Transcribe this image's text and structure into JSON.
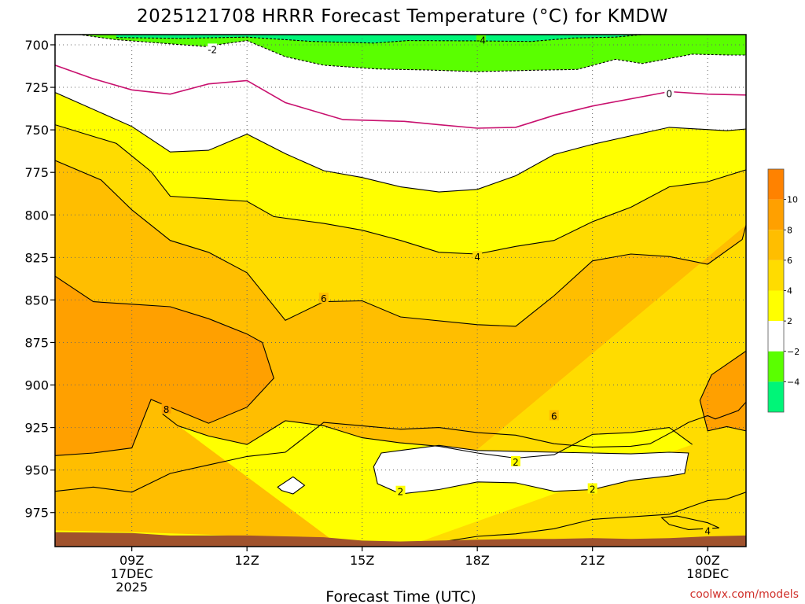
{
  "chart_data": {
    "type": "heatmap",
    "title": "2025121708 HRRR Forecast Temperature (°C) for KMDW",
    "xlabel": "Forecast Time (UTC)",
    "ylabel": "",
    "credit": "coolwx.com/models",
    "y_axis": {
      "quantity": "pressure (hPa)",
      "inverted": true,
      "range": [
        995,
        694
      ],
      "ticks": [
        700,
        725,
        750,
        775,
        800,
        825,
        850,
        875,
        900,
        925,
        950,
        975
      ]
    },
    "x_axis": {
      "range_hours_valid_utc": [
        7.0,
        25.0
      ],
      "ticks": [
        {
          "h": 9,
          "label": "09Z",
          "sublabels": [
            "17DEC",
            "2025"
          ]
        },
        {
          "h": 12,
          "label": "12Z",
          "sublabels": []
        },
        {
          "h": 15,
          "label": "15Z",
          "sublabels": []
        },
        {
          "h": 18,
          "label": "18Z",
          "sublabels": []
        },
        {
          "h": 21,
          "label": "21Z",
          "sublabels": []
        },
        {
          "h": 24,
          "label": "00Z",
          "sublabels": [
            "18DEC"
          ]
        }
      ]
    },
    "grid": "dotted",
    "colorbar": {
      "placement": "right",
      "ticks": [
        10,
        8,
        6,
        4,
        2,
        -2,
        -4
      ],
      "tick_labels": [
        "10",
        "8",
        "6",
        "4",
        "2",
        "−2",
        "−4"
      ],
      "bins": [
        {
          "range": [
            10,
            12
          ],
          "color": "#ff8200"
        },
        {
          "range": [
            8,
            10
          ],
          "color": "#ffa000"
        },
        {
          "range": [
            6,
            8
          ],
          "color": "#ffbe00"
        },
        {
          "range": [
            4,
            6
          ],
          "color": "#ffdc00"
        },
        {
          "range": [
            2,
            4
          ],
          "color": "#ffff00"
        },
        {
          "range": [
            -2,
            2
          ],
          "color": "#ffffff"
        },
        {
          "range": [
            -4,
            -2
          ],
          "color": "#5aff00"
        },
        {
          "range": [
            -6,
            -4
          ],
          "color": "#00f578"
        }
      ]
    },
    "surface_color": "#a0522d",
    "freezing_line_color": "#c8106e",
    "isotherms": [
      {
        "value": -4,
        "label": "-4",
        "color": "#000000",
        "points": [
          [
            8.6,
            695.7
          ],
          [
            10.2,
            696.2
          ],
          [
            12.0,
            695.5
          ],
          [
            13.7,
            698.0
          ],
          [
            15.3,
            699.0
          ],
          [
            16.2,
            697.5
          ],
          [
            18.0,
            697.7
          ],
          [
            19.4,
            698.0
          ],
          [
            20.5,
            696.0
          ],
          [
            21.6,
            695.5
          ],
          [
            22.3,
            694.0
          ]
        ]
      },
      {
        "value": -2,
        "label": "-2",
        "color": "#000000",
        "points": [
          [
            7.0,
            692.0
          ],
          [
            8.6,
            697.0
          ],
          [
            10.9,
            701.0
          ],
          [
            12.0,
            697.5
          ],
          [
            13.0,
            707.0
          ],
          [
            14.0,
            712.0
          ],
          [
            15.4,
            714.2
          ],
          [
            16.7,
            714.8
          ],
          [
            18.0,
            715.8
          ],
          [
            19.4,
            715.0
          ],
          [
            20.6,
            714.5
          ],
          [
            21.6,
            708.5
          ],
          [
            22.3,
            711.0
          ],
          [
            23.6,
            705.5
          ],
          [
            24.6,
            706.0
          ],
          [
            25.0,
            706.0
          ]
        ]
      },
      {
        "value": 0,
        "label": "0",
        "color": "#c8106e",
        "points": [
          [
            7.0,
            712.0
          ],
          [
            8.0,
            720.0
          ],
          [
            9.0,
            726.5
          ],
          [
            10.0,
            729.0
          ],
          [
            11.0,
            723.0
          ],
          [
            12.0,
            721.0
          ],
          [
            13.0,
            734.0
          ],
          [
            14.5,
            744.0
          ],
          [
            16.1,
            745.0
          ],
          [
            17.0,
            747.0
          ],
          [
            18.0,
            749.0
          ],
          [
            19.0,
            748.5
          ],
          [
            20.0,
            741.5
          ],
          [
            21.0,
            736.0
          ],
          [
            23.0,
            727.5
          ],
          [
            24.0,
            729.0
          ],
          [
            25.0,
            729.5
          ]
        ]
      },
      {
        "value": 2,
        "label": "2",
        "color": "#000000",
        "points": [
          [
            7.0,
            728.0
          ],
          [
            9.0,
            748.0
          ],
          [
            10.0,
            763.0
          ],
          [
            11.0,
            762.0
          ],
          [
            12.0,
            752.5
          ],
          [
            13.0,
            764.0
          ],
          [
            14.0,
            774.0
          ],
          [
            15.0,
            778.0
          ],
          [
            16.0,
            783.5
          ],
          [
            17.0,
            786.5
          ],
          [
            18.0,
            785.0
          ],
          [
            19.0,
            777.0
          ],
          [
            20.0,
            764.5
          ],
          [
            21.0,
            758.5
          ],
          [
            22.2,
            752.5
          ],
          [
            23.0,
            748.5
          ],
          [
            24.5,
            750.5
          ],
          [
            25.0,
            749.5
          ]
        ]
      },
      {
        "value": 4,
        "label": "4",
        "color": "#000000",
        "points": [
          [
            7.0,
            747.0
          ],
          [
            8.6,
            758.0
          ],
          [
            9.5,
            774.5
          ],
          [
            10.0,
            789.0
          ],
          [
            11.0,
            790.5
          ],
          [
            12.0,
            792.0
          ],
          [
            12.7,
            801.0
          ],
          [
            14.0,
            805.0
          ],
          [
            15.0,
            809.0
          ],
          [
            16.0,
            815.0
          ],
          [
            17.0,
            822.0
          ],
          [
            18.0,
            823.0
          ],
          [
            19.0,
            818.5
          ],
          [
            20.0,
            815.0
          ],
          [
            21.0,
            804.0
          ],
          [
            22.0,
            795.5
          ],
          [
            23.0,
            783.5
          ],
          [
            24.0,
            780.5
          ],
          [
            25.0,
            773.5
          ]
        ]
      },
      {
        "value": 6,
        "label": "6",
        "color": "#000000",
        "points": [
          [
            7.0,
            768.0
          ],
          [
            8.2,
            779.5
          ],
          [
            9.0,
            797.0
          ],
          [
            10.0,
            815.0
          ],
          [
            11.0,
            822.0
          ],
          [
            12.0,
            834.0
          ],
          [
            13.0,
            862.0
          ],
          [
            14.0,
            851.0
          ],
          [
            15.0,
            850.5
          ],
          [
            16.0,
            860.0
          ],
          [
            18.0,
            864.5
          ],
          [
            19.0,
            865.5
          ],
          [
            20.0,
            847.5
          ],
          [
            21.0,
            827.0
          ],
          [
            22.0,
            823.0
          ],
          [
            23.0,
            824.5
          ],
          [
            24.0,
            829.0
          ],
          [
            24.9,
            814.5
          ],
          [
            25.0,
            806.0
          ]
        ]
      },
      {
        "value": 8,
        "label": "8",
        "color": "#000000",
        "points": [
          [
            7.0,
            836.0
          ],
          [
            8.0,
            851.0
          ],
          [
            9.0,
            852.5
          ],
          [
            10.0,
            854.0
          ],
          [
            11.0,
            861.0
          ],
          [
            12.0,
            870.0
          ],
          [
            12.4,
            875.0
          ],
          [
            12.7,
            896.0
          ],
          [
            12.0,
            913.0
          ],
          [
            11.0,
            922.5
          ],
          [
            10.2,
            915.0
          ],
          [
            9.5,
            908.5
          ],
          [
            9.0,
            937.0
          ],
          [
            8.0,
            940.0
          ],
          [
            7.0,
            941.5
          ]
        ]
      },
      {
        "value": 8,
        "label": "",
        "color": "#000000",
        "points": [
          [
            25.0,
            880.0
          ],
          [
            24.1,
            894.0
          ],
          [
            23.8,
            909.0
          ],
          [
            24.0,
            927.0
          ],
          [
            24.5,
            924.5
          ],
          [
            25.0,
            927.0
          ]
        ]
      },
      {
        "value": 6,
        "label": "",
        "color": "#000000",
        "points": [
          [
            25.0,
            910.0
          ],
          [
            24.8,
            915.0
          ],
          [
            24.2,
            920.0
          ],
          [
            24.0,
            918.0
          ],
          [
            23.5,
            922.0
          ],
          [
            23.0,
            928.5
          ],
          [
            22.5,
            934.5
          ],
          [
            22.0,
            936.0
          ],
          [
            21.0,
            936.5
          ],
          [
            20.0,
            934.5
          ],
          [
            19.0,
            929.5
          ],
          [
            18.0,
            928.0
          ],
          [
            17.0,
            925.0
          ],
          [
            16.0,
            926.0
          ],
          [
            15.0,
            924.0
          ],
          [
            14.0,
            922.0
          ],
          [
            13.0,
            939.5
          ],
          [
            12.0,
            942.0
          ],
          [
            11.0,
            947.0
          ],
          [
            10.0,
            952.0
          ],
          [
            9.0,
            963.0
          ],
          [
            8.0,
            960.0
          ],
          [
            7.0,
            962.5
          ]
        ]
      },
      {
        "value": 4,
        "label": "4",
        "color": "#000000",
        "points": [
          [
            25.0,
            963.0
          ],
          [
            24.5,
            967.0
          ],
          [
            24.0,
            968.0
          ],
          [
            23.0,
            976.0
          ],
          [
            22.0,
            977.5
          ],
          [
            21.0,
            979.0
          ],
          [
            20.0,
            984.5
          ],
          [
            19.0,
            987.5
          ],
          [
            18.0,
            989.0
          ],
          [
            17.0,
            992.5
          ],
          [
            16.0,
            993.5
          ],
          [
            15.0,
            994.5
          ]
        ]
      },
      {
        "value": 6,
        "label": "6",
        "color": "#000000",
        "points": [
          [
            9.8,
            917.0
          ],
          [
            10.2,
            924.0
          ],
          [
            11.0,
            930.0
          ],
          [
            12.0,
            935.0
          ],
          [
            13.0,
            921.0
          ],
          [
            14.0,
            924.0
          ],
          [
            15.0,
            931.0
          ],
          [
            16.0,
            934.0
          ],
          [
            17.0,
            936.0
          ],
          [
            18.0,
            940.0
          ],
          [
            19.0,
            943.0
          ],
          [
            20.0,
            941.0
          ],
          [
            21.0,
            929.0
          ],
          [
            22.0,
            928.0
          ],
          [
            23.0,
            925.0
          ],
          [
            23.6,
            935.0
          ]
        ]
      },
      {
        "value": 2,
        "label": "2",
        "color": "#000000",
        "points": [
          [
            15.5,
            940.0
          ],
          [
            17.0,
            935.5
          ],
          [
            18.0,
            938.5
          ],
          [
            19.0,
            939.0
          ],
          [
            20.0,
            939.5
          ],
          [
            21.0,
            940.0
          ],
          [
            22.0,
            940.5
          ],
          [
            23.0,
            939.5
          ],
          [
            23.5,
            940.0
          ],
          [
            23.4,
            952.0
          ],
          [
            23.0,
            953.5
          ],
          [
            22.0,
            956.0
          ],
          [
            21.0,
            961.5
          ],
          [
            20.0,
            962.5
          ],
          [
            19.0,
            957.5
          ],
          [
            18.0,
            957.0
          ],
          [
            17.0,
            961.5
          ],
          [
            16.0,
            964.0
          ],
          [
            15.4,
            958.0
          ],
          [
            15.3,
            948.0
          ]
        ]
      },
      {
        "value": 2,
        "label": "",
        "color": "#000000",
        "points": [
          [
            12.8,
            960.0
          ],
          [
            13.2,
            954.0
          ],
          [
            13.5,
            959.0
          ],
          [
            13.2,
            964.0
          ],
          [
            12.9,
            962.0
          ]
        ]
      },
      {
        "value": 4,
        "label": "",
        "color": "#000000",
        "points": [
          [
            22.8,
            978.0
          ],
          [
            23.2,
            977.0
          ],
          [
            24.0,
            981.0
          ],
          [
            24.3,
            984.0
          ],
          [
            23.5,
            985.0
          ],
          [
            23.0,
            982.0
          ]
        ]
      }
    ],
    "labels": [
      {
        "value": "-4",
        "h": 18.1,
        "p": 697.0
      },
      {
        "value": "-2",
        "h": 11.1,
        "p": 702.5
      },
      {
        "value": "0",
        "h": 23.0,
        "p": 728.5
      },
      {
        "value": "4",
        "h": 18.0,
        "p": 824.5
      },
      {
        "value": "6",
        "h": 14.0,
        "p": 849.0
      },
      {
        "value": "8",
        "h": 9.9,
        "p": 914.0
      },
      {
        "value": "6",
        "h": 20.0,
        "p": 918.0
      },
      {
        "value": "2",
        "h": 19.0,
        "p": 945.0
      },
      {
        "value": "2",
        "h": 16.0,
        "p": 962.5
      },
      {
        "value": "2",
        "h": 21.0,
        "p": 961.0
      },
      {
        "value": "4",
        "h": 24.0,
        "p": 985.5
      }
    ]
  }
}
